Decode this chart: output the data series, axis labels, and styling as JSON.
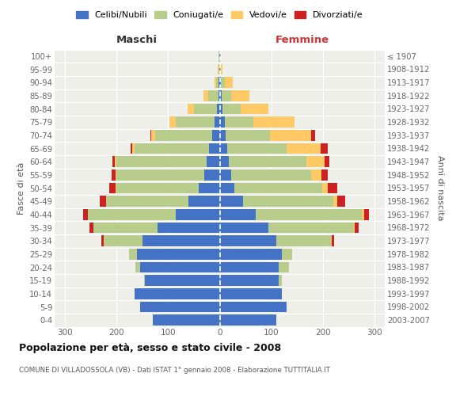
{
  "age_groups": [
    "0-4",
    "5-9",
    "10-14",
    "15-19",
    "20-24",
    "25-29",
    "30-34",
    "35-39",
    "40-44",
    "45-49",
    "50-54",
    "55-59",
    "60-64",
    "65-69",
    "70-74",
    "75-79",
    "80-84",
    "85-89",
    "90-94",
    "95-99",
    "100+"
  ],
  "birth_years": [
    "2003-2007",
    "1998-2002",
    "1993-1997",
    "1988-1992",
    "1983-1987",
    "1978-1982",
    "1973-1977",
    "1968-1972",
    "1963-1967",
    "1958-1962",
    "1953-1957",
    "1948-1952",
    "1943-1947",
    "1938-1942",
    "1933-1937",
    "1928-1932",
    "1923-1927",
    "1918-1922",
    "1913-1917",
    "1908-1912",
    "≤ 1907"
  ],
  "male_celibi": [
    130,
    155,
    165,
    145,
    155,
    160,
    150,
    120,
    85,
    60,
    40,
    30,
    25,
    20,
    15,
    10,
    5,
    3,
    2,
    1,
    1
  ],
  "male_coniugati": [
    0,
    0,
    0,
    2,
    8,
    15,
    75,
    125,
    170,
    160,
    160,
    170,
    175,
    145,
    110,
    75,
    45,
    20,
    5,
    2,
    1
  ],
  "male_vedovi": [
    0,
    0,
    0,
    0,
    0,
    0,
    0,
    0,
    1,
    1,
    2,
    2,
    3,
    5,
    8,
    12,
    12,
    8,
    3,
    1,
    0
  ],
  "male_divorziati": [
    0,
    0,
    0,
    0,
    0,
    0,
    5,
    8,
    8,
    12,
    12,
    8,
    5,
    3,
    2,
    0,
    0,
    0,
    0,
    0,
    0
  ],
  "female_nubili": [
    110,
    130,
    120,
    115,
    115,
    120,
    110,
    95,
    70,
    45,
    28,
    22,
    18,
    15,
    12,
    10,
    5,
    4,
    2,
    1,
    1
  ],
  "female_coniugate": [
    0,
    0,
    0,
    5,
    20,
    20,
    105,
    165,
    205,
    175,
    170,
    155,
    150,
    115,
    85,
    55,
    35,
    18,
    8,
    2,
    1
  ],
  "female_vedove": [
    0,
    0,
    0,
    0,
    0,
    0,
    2,
    2,
    5,
    8,
    12,
    20,
    35,
    65,
    80,
    80,
    55,
    35,
    15,
    3,
    1
  ],
  "female_divorziate": [
    0,
    0,
    0,
    0,
    0,
    0,
    5,
    8,
    10,
    15,
    18,
    12,
    10,
    15,
    8,
    0,
    0,
    0,
    0,
    0,
    0
  ],
  "color_celibi": "#4472c4",
  "color_coniugati": "#b8cc8c",
  "color_vedovi": "#ffc966",
  "color_divorziati": "#cc2222",
  "xlim": 320,
  "title": "Popolazione per età, sesso e stato civile - 2008",
  "subtitle": "COMUNE DI VILLADOSSOLA (VB) - Dati ISTAT 1° gennaio 2008 - Elaborazione TUTTITALIA.IT",
  "ylabel_left": "Fasce di età",
  "ylabel_right": "Anni di nascita",
  "legend_labels": [
    "Celibi/Nubili",
    "Coniugati/e",
    "Vedovi/e",
    "Divorziati/e"
  ],
  "maschi_label": "Maschi",
  "femmine_label": "Femmine",
  "bg_color": "#efefea"
}
